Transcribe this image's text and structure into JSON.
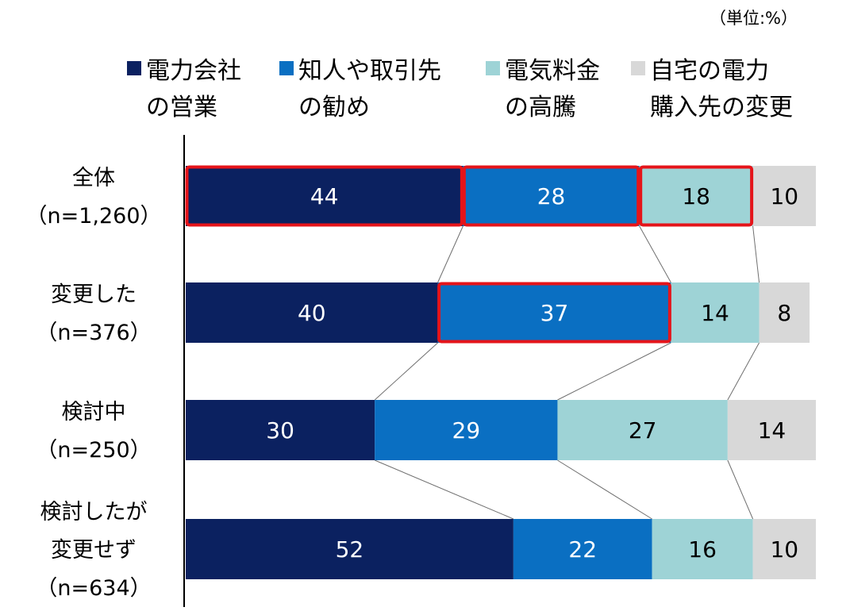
{
  "unit_label": "（単位:%）",
  "chart_data": {
    "type": "bar",
    "orientation": "horizontal",
    "stacked": true,
    "normalized_100": true,
    "categories": [
      [
        "全体",
        "（n=1,260）"
      ],
      [
        "変更した",
        "（n=376）"
      ],
      [
        "検討中",
        "（n=250）"
      ],
      [
        "検討したが",
        "変更せず",
        "（n=634）"
      ]
    ],
    "series": [
      {
        "name": [
          "電力会社",
          "の営業"
        ],
        "color": "#0b2160",
        "label_color": "#ffffff",
        "values": [
          44,
          40,
          30,
          52
        ]
      },
      {
        "name": [
          "知人や取引先",
          "の勧め"
        ],
        "color": "#0a6fc2",
        "label_color": "#ffffff",
        "values": [
          28,
          37,
          29,
          22
        ]
      },
      {
        "name": [
          "電気料金",
          "の高騰"
        ],
        "color": "#9ed3d6",
        "label_color": "#000000",
        "values": [
          18,
          14,
          27,
          16
        ]
      },
      {
        "name": [
          "自宅の電力",
          "購入先の変更"
        ],
        "color": "#d8d8d8",
        "label_color": "#000000",
        "values": [
          10,
          8,
          14,
          10
        ]
      }
    ],
    "highlights": [
      {
        "category": 0,
        "series": 0
      },
      {
        "category": 0,
        "series": 1
      },
      {
        "category": 0,
        "series": 2
      },
      {
        "category": 1,
        "series": 1
      }
    ],
    "highlight_color": "#e5141a",
    "connector_lines": true,
    "xlim": [
      0,
      100
    ],
    "legend_position": "top",
    "grid": false
  }
}
